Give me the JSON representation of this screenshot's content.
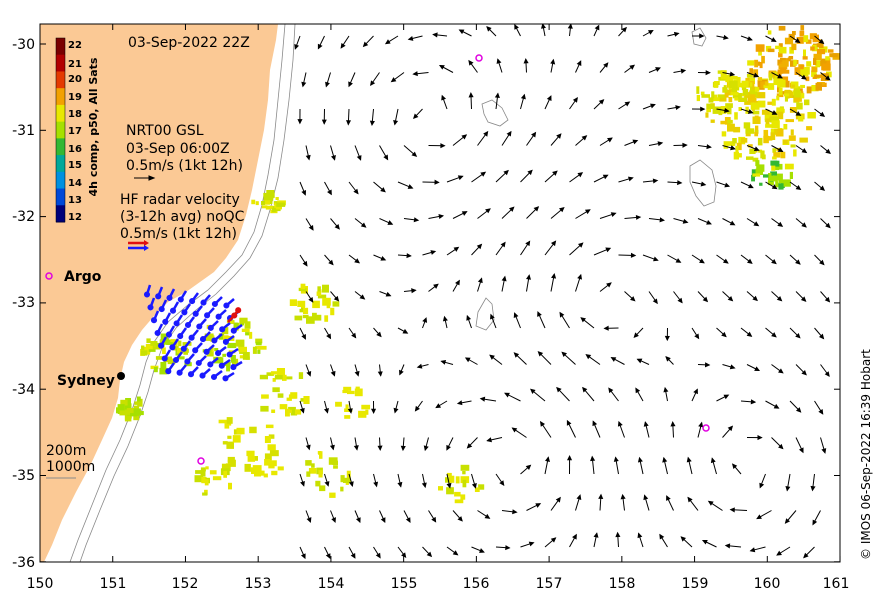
{
  "map": {
    "date_label": "03-Sep-2022 22Z",
    "x_ticks": [
      "150",
      "151",
      "152",
      "153",
      "154",
      "155",
      "156",
      "157",
      "158",
      "159",
      "160",
      "161"
    ],
    "y_ticks": [
      "-30",
      "-31",
      "-32",
      "-33",
      "-34",
      "-35",
      "-36"
    ],
    "colorbar": {
      "title": "4h comp, p50, All Sats",
      "labels": [
        "22",
        "21",
        "20",
        "19",
        "18",
        "17",
        "16",
        "15",
        "14",
        "13",
        "12"
      ],
      "colors": [
        "#7a0000",
        "#b20000",
        "#e43a00",
        "#f2a100",
        "#e8e800",
        "#a6e000",
        "#33b833",
        "#00a89a",
        "#0090e0",
        "#0048d8",
        "#00007a"
      ]
    },
    "gsl_legend": {
      "line1": "NRT00 GSL",
      "line2": "03-Sep 06:00Z",
      "line3": "0.5m/s (1kt 12h)"
    },
    "radar_legend": {
      "line1": "HF radar velocity",
      "line2": "(3-12h avg) noQC",
      "line3": "0.5m/s (1kt 12h)"
    },
    "argo_label": "Argo",
    "city_label": "Sydney",
    "isobath_legend": {
      "line1": "200m",
      "line2": "1000m"
    },
    "credit": "© IMOS 06-Sep-2022 16:39 Hobart",
    "colors": {
      "land": "#fbc995",
      "argo": "#e000e0",
      "radar_blue": "#1a1aff",
      "radar_red": "#e01010"
    }
  }
}
